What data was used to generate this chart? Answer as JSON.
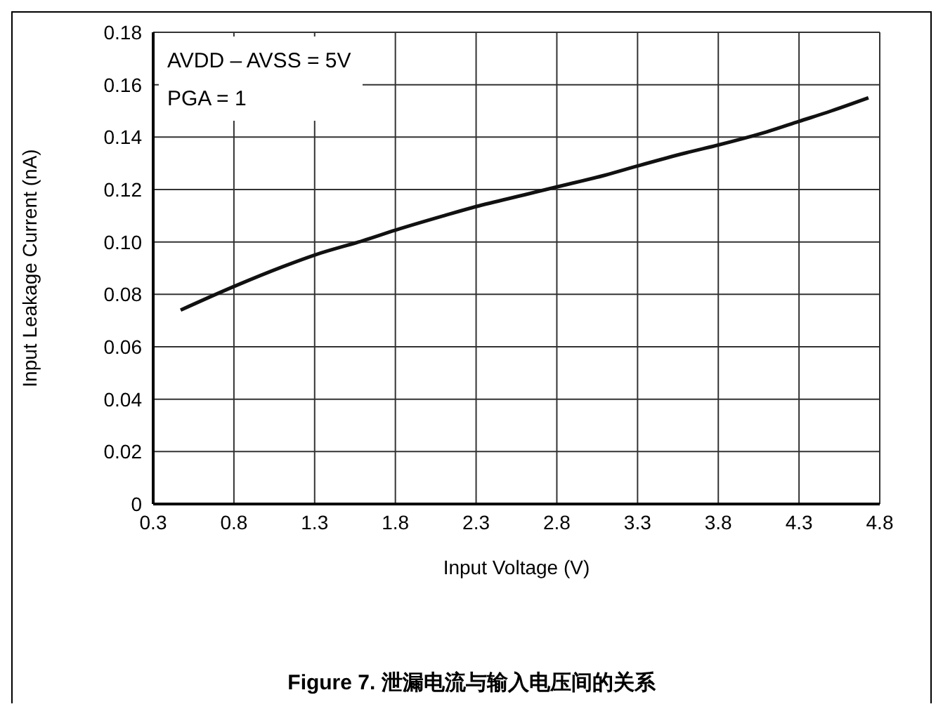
{
  "chart_data": {
    "type": "line",
    "xlabel": "Input Voltage (V)",
    "ylabel": "Input Leakage Current (nA)",
    "annotations": [
      "AVDD – AVSS = 5V",
      "PGA = 1",
      "Figure 7. 泄漏电流与输入电压间的关系"
    ],
    "x": [
      0.47,
      0.8,
      1.1,
      1.3,
      1.6,
      1.8,
      2.1,
      2.3,
      2.6,
      2.8,
      3.1,
      3.3,
      3.6,
      3.8,
      4.1,
      4.3,
      4.5,
      4.73
    ],
    "series": [
      {
        "color": "#111111",
        "values": [
          0.074,
          0.083,
          0.0905,
          0.095,
          0.1005,
          0.1045,
          0.11,
          0.1135,
          0.118,
          0.121,
          0.1255,
          0.129,
          0.134,
          0.137,
          0.142,
          0.146,
          0.15,
          0.155
        ]
      }
    ],
    "xlim": [
      0.3,
      4.8
    ],
    "xticks": [
      0.3,
      0.8,
      1.3,
      1.8,
      2.3,
      2.8,
      3.3,
      3.8,
      4.3,
      4.8
    ],
    "ylim": [
      0,
      0.18
    ],
    "yticks": [
      0,
      0.02,
      0.04,
      0.06,
      0.08,
      {
        "value": 0.1,
        "label": "0.10"
      },
      0.12,
      0.14,
      0.16,
      0.18
    ],
    "grid": true,
    "marker": "none",
    "line_style": "solid",
    "legend": false
  }
}
